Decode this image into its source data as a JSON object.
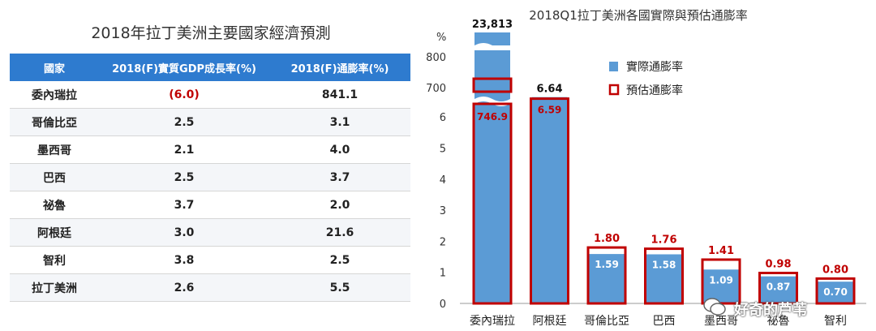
{
  "table": {
    "title": "2018年拉丁美洲主要國家經濟預測",
    "headers": [
      "國家",
      "2018(F)實質GDP成長率(%)",
      "2018(F)通膨率(%)"
    ],
    "rows": [
      {
        "country": "委內瑞拉",
        "gdp": "(6.0)",
        "inflation": "841.1",
        "negative": true
      },
      {
        "country": "哥倫比亞",
        "gdp": "2.5",
        "inflation": "3.1"
      },
      {
        "country": "墨西哥",
        "gdp": "2.1",
        "inflation": "4.0"
      },
      {
        "country": "巴西",
        "gdp": "2.5",
        "inflation": "3.7"
      },
      {
        "country": "祕魯",
        "gdp": "3.7",
        "inflation": "2.0"
      },
      {
        "country": "阿根廷",
        "gdp": "3.0",
        "inflation": "21.6"
      },
      {
        "country": "智利",
        "gdp": "3.8",
        "inflation": "2.5"
      },
      {
        "country": "拉丁美洲",
        "gdp": "2.6",
        "inflation": "5.5"
      }
    ]
  },
  "chart_data": {
    "type": "bar",
    "title": "2018Q1拉丁美洲各國實際與預估通膨率",
    "ylabel": "%",
    "ylim": [
      0,
      7
    ],
    "yticks_low": [
      "0",
      "1",
      "2",
      "3",
      "4",
      "5",
      "6"
    ],
    "yticks_high": [
      "700",
      "800"
    ],
    "axis_break": true,
    "categories": [
      "委內瑞拉",
      "阿根廷",
      "哥倫比亞",
      "巴西",
      "墨西哥",
      "祕魯",
      "智利"
    ],
    "series": [
      {
        "name": "實際通膨率",
        "values": [
          23813,
          6.64,
          1.59,
          1.58,
          1.09,
          0.87,
          0.7
        ],
        "labels": [
          "23,813",
          "6.64",
          "1.59",
          "1.58",
          "1.09",
          "0.87",
          "0.70"
        ]
      },
      {
        "name": "預估通膨率",
        "values": [
          746.9,
          6.59,
          1.8,
          1.76,
          1.41,
          0.98,
          0.8
        ],
        "labels": [
          "746.9",
          "6.59",
          "1.80",
          "1.76",
          "1.41",
          "0.98",
          "0.80"
        ]
      }
    ],
    "legend": "top-right",
    "colors": {
      "actual": "#5b9bd5",
      "forecast": "#c00000"
    }
  },
  "watermark": "好奇的芦苇"
}
